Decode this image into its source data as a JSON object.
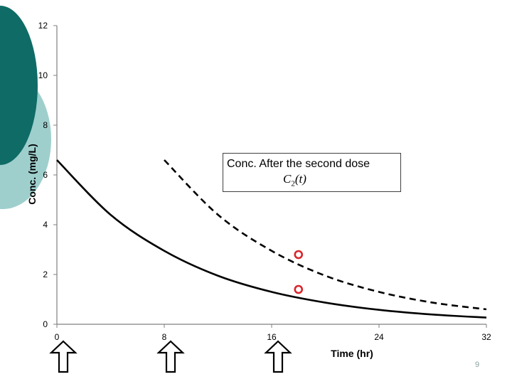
{
  "slide": {
    "number": "9",
    "decoration_colors": {
      "dark": "#0f6b66",
      "light": "#9ecfcd"
    }
  },
  "annotation": {
    "text": "Conc. After the second dose",
    "math": {
      "symbol": "C",
      "subscript": "2",
      "arg": "(t)"
    }
  },
  "dose_arrow": {
    "icon": "up-arrow-icon",
    "at_x": [
      0,
      8,
      16
    ]
  },
  "chart_data": {
    "type": "line",
    "xlabel": "Time (hr)",
    "ylabel": "Conc. (mg/L)",
    "xlim": [
      0,
      32
    ],
    "ylim": [
      0,
      12
    ],
    "x_ticks": [
      0,
      8,
      16,
      24,
      32
    ],
    "y_ticks": [
      0,
      2,
      4,
      6,
      8,
      10,
      12
    ],
    "grid": false,
    "series": [
      {
        "style": "solid",
        "color": "#000000",
        "x": [
          0,
          4,
          8,
          12,
          16,
          20,
          24,
          28,
          32
        ],
        "y": [
          6.6,
          4.4,
          2.95,
          1.95,
          1.3,
          0.87,
          0.58,
          0.39,
          0.27
        ]
      },
      {
        "style": "dashed",
        "color": "#000000",
        "x": [
          8,
          12,
          16,
          20,
          24,
          28,
          32
        ],
        "y": [
          6.6,
          4.4,
          2.95,
          1.95,
          1.3,
          0.87,
          0.6
        ]
      }
    ],
    "markers": [
      {
        "x": 18,
        "y": 2.8,
        "color": "#d9262b",
        "shape": "open-circle"
      },
      {
        "x": 18,
        "y": 1.4,
        "color": "#d9262b",
        "shape": "open-circle"
      }
    ]
  }
}
